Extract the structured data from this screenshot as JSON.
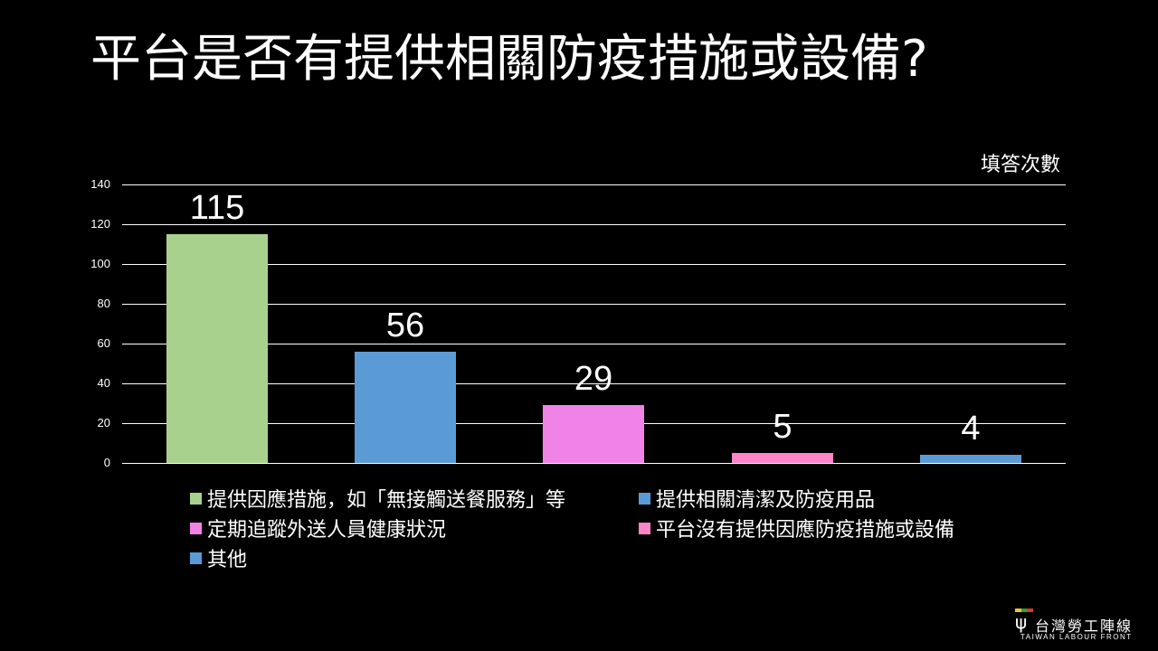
{
  "slide": {
    "title": "平台是否有提供相關防疫措施或設備?",
    "unit_label": "填答次數"
  },
  "chart_data": {
    "type": "bar",
    "title": "平台是否有提供相關防疫措施或設備?",
    "xlabel": "",
    "ylabel": "填答次數",
    "ylim": [
      0,
      140
    ],
    "yticks": [
      0,
      20,
      40,
      60,
      80,
      100,
      120,
      140
    ],
    "ytick_labels": [
      "0",
      "20",
      "40",
      "60",
      "80",
      "100",
      "120",
      "140"
    ],
    "grid": true,
    "legend_position": "bottom",
    "categories": [
      "提供因應措施，如「無接觸送餐服務」等",
      "提供相關清潔及防疫用品",
      "定期追蹤外送人員健康狀況",
      "平台沒有提供因應防疫措施或設備",
      "其他"
    ],
    "values": [
      115,
      56,
      29,
      5,
      4
    ],
    "data_labels": [
      "115",
      "56",
      "29",
      "5",
      "4"
    ],
    "colors": [
      "#a9d18e",
      "#5b9bd5",
      "#f283e6",
      "#ff85c8",
      "#5b9bd5"
    ]
  },
  "legend": {
    "items": [
      {
        "label": "提供因應措施，如「無接觸送餐服務」等",
        "color": "#a9d18e"
      },
      {
        "label": "提供相關清潔及防疫用品",
        "color": "#5b9bd5"
      },
      {
        "label": "定期追蹤外送人員健康狀況",
        "color": "#f283e6"
      },
      {
        "label": "平台沒有提供因應防疫措施或設備",
        "color": "#ff85c8"
      },
      {
        "label": "其他",
        "color": "#5b9bd5"
      }
    ]
  },
  "logo": {
    "symbol": "ψ",
    "name_cn": "台灣勞工陣線",
    "name_en": "TAIWAN LABOUR FRONT",
    "stripe_colors": [
      "#e8c33a",
      "#3a9a3a",
      "#d83a2a"
    ]
  }
}
